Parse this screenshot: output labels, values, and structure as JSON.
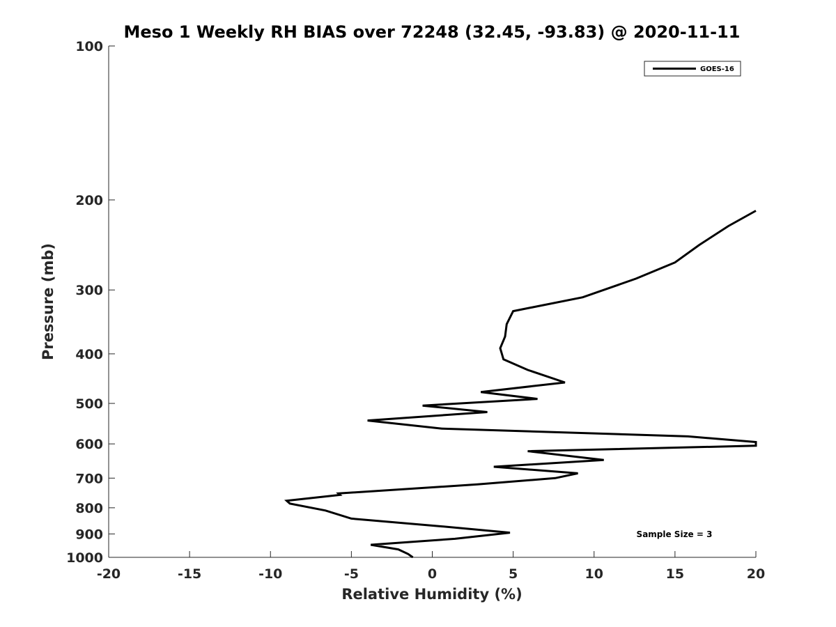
{
  "chart_data": {
    "type": "line",
    "title": "Meso 1 Weekly RH BIAS over 72248 (32.45, -93.83) @ 2020-11-11",
    "xlabel": "Relative Humidity (%)",
    "ylabel": "Pressure (mb)",
    "xlim": [
      -20,
      20
    ],
    "ylim": [
      1000,
      100
    ],
    "yscale": "log",
    "x_ticks": [
      "-20",
      "-15",
      "-10",
      "-5",
      "0",
      "5",
      "10",
      "15",
      "20"
    ],
    "y_ticks": [
      "100",
      "200",
      "300",
      "400",
      "500",
      "600",
      "700",
      "800",
      "900",
      "1000"
    ],
    "grid": false,
    "legend": "top-right",
    "line_color": "#000000",
    "series": [
      {
        "name": "GOES-16",
        "x": [
          -1.2,
          -1.5,
          -2.1,
          -3.8,
          1.4,
          4.8,
          0.6,
          -5,
          -6.6,
          -8.8,
          -9,
          -5.7,
          -5.8,
          2.8,
          7.6,
          9,
          3.8,
          10.6,
          5.9,
          20,
          20,
          15.8,
          0.6,
          -4,
          3.4,
          -0.6,
          6.5,
          3,
          8.2,
          5.9,
          4.4,
          4.2,
          4.5,
          4.6,
          5,
          9.3,
          12.6,
          15,
          16.5,
          18.3,
          20
        ],
        "y": [
          1000,
          985,
          965,
          945,
          920,
          895,
          870,
          840,
          810,
          785,
          775,
          755,
          750,
          720,
          700,
          685,
          665,
          645,
          620,
          605,
          595,
          580,
          560,
          540,
          520,
          505,
          490,
          475,
          455,
          430,
          410,
          390,
          370,
          350,
          330,
          310,
          285,
          265,
          245,
          225,
          210
        ]
      }
    ],
    "annotations": [
      "Sample Size = 3"
    ]
  }
}
